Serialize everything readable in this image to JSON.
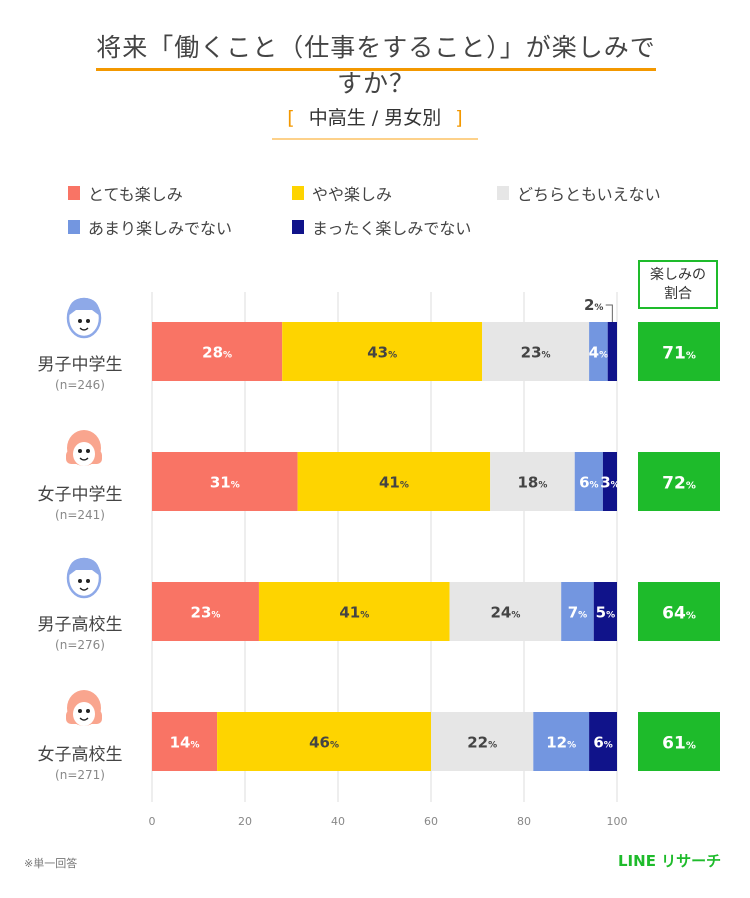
{
  "title": "将来「働くこと（仕事をすること）」が楽しみですか？",
  "subtitle": "中高生 / 男女別",
  "subtitle_brackets": [
    "[",
    "]"
  ],
  "ratio_header": [
    "楽しみの",
    "割合"
  ],
  "footnote": "※単一回答",
  "logo": "LINE リサーチ",
  "chart_data": {
    "type": "bar",
    "orientation": "horizontal",
    "stacked": true,
    "value_suffix": "%",
    "xlim": [
      0,
      100
    ],
    "xticks": [
      0,
      20,
      40,
      60,
      80,
      100
    ],
    "grid": true,
    "legend_position": "top",
    "categories": [
      {
        "label": "男子中学生",
        "n": "(n=246)",
        "icon": "boy-face-icon",
        "icon_color": "#8ea9e8",
        "ratio": 71
      },
      {
        "label": "女子中学生",
        "n": "(n=241)",
        "icon": "girl-face-icon",
        "icon_color": "#f9a58e",
        "ratio": 72
      },
      {
        "label": "男子高校生",
        "n": "(n=276)",
        "icon": "boy-face-icon",
        "icon_color": "#8ea9e8",
        "ratio": 64
      },
      {
        "label": "女子高校生",
        "n": "(n=271)",
        "icon": "girl-face-icon",
        "icon_color": "#f9a58e",
        "ratio": 61
      }
    ],
    "series": [
      {
        "name": "とても楽しみ",
        "color": "#f97465",
        "label_color": "#ffffff",
        "values": [
          28,
          31,
          23,
          14
        ]
      },
      {
        "name": "やや楽しみ",
        "color": "#fed400",
        "label_color": "#444444",
        "values": [
          43,
          41,
          41,
          46
        ]
      },
      {
        "name": "どちらともいえない",
        "color": "#e6e6e6",
        "label_color": "#444444",
        "values": [
          23,
          18,
          24,
          22
        ]
      },
      {
        "name": "あまり楽しみでない",
        "color": "#7396e0",
        "label_color": "#ffffff",
        "values": [
          4,
          6,
          7,
          12
        ]
      },
      {
        "name": "まったく楽しみでない",
        "color": "#10138a",
        "label_color": "#ffffff",
        "values": [
          2,
          3,
          5,
          6
        ]
      }
    ],
    "ratio_color": "#1ebb2b"
  }
}
